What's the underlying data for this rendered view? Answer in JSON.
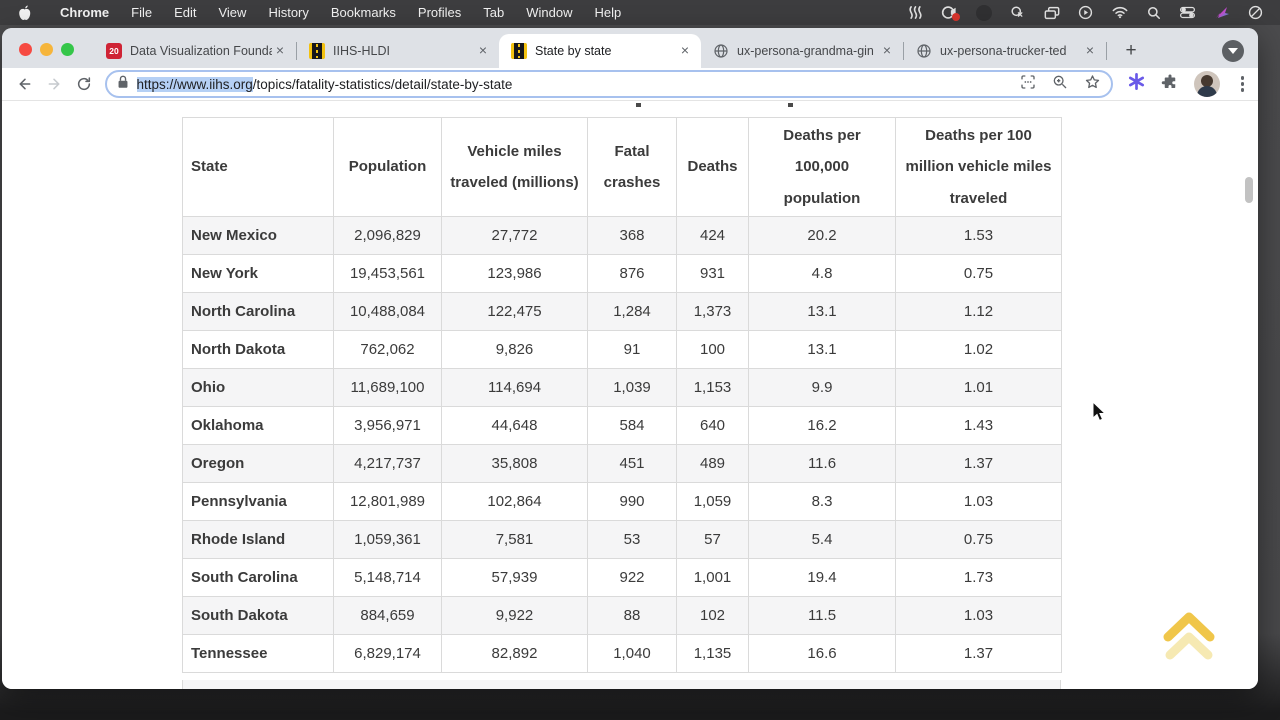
{
  "menu_bar": {
    "items": [
      "Chrome",
      "File",
      "Edit",
      "View",
      "History",
      "Bookmarks",
      "Profiles",
      "Tab",
      "Window",
      "Help"
    ]
  },
  "tab_strip": {
    "close_glyph": "×",
    "new_tab_glyph": "+",
    "tabs": [
      {
        "label": "Data Visualization Founda",
        "favicon": "badge-20",
        "badge": "20"
      },
      {
        "label": "IIHS-HLDI",
        "favicon": "road"
      },
      {
        "label": "State by state",
        "favicon": "road",
        "active": true
      },
      {
        "label": "ux-persona-grandma-gin",
        "favicon": "globe"
      },
      {
        "label": "ux-persona-trucker-ted",
        "favicon": "globe"
      }
    ]
  },
  "toolbar": {
    "url_selected": "https://www.iihs.org",
    "url_rest": "/topics/fatality-statistics/detail/state-by-state"
  },
  "page": {
    "table": {
      "headers": [
        "State",
        "Population",
        "Vehicle miles traveled (millions)",
        "Fatal crashes",
        "Deaths",
        "Deaths per 100,000 population",
        "Deaths per 100 million vehicle miles traveled"
      ],
      "rows": [
        [
          "New Mexico",
          "2,096,829",
          "27,772",
          "368",
          "424",
          "20.2",
          "1.53"
        ],
        [
          "New York",
          "19,453,561",
          "123,986",
          "876",
          "931",
          "4.8",
          "0.75"
        ],
        [
          "North Carolina",
          "10,488,084",
          "122,475",
          "1,284",
          "1,373",
          "13.1",
          "1.12"
        ],
        [
          "North Dakota",
          "762,062",
          "9,826",
          "91",
          "100",
          "13.1",
          "1.02"
        ],
        [
          "Ohio",
          "11,689,100",
          "114,694",
          "1,039",
          "1,153",
          "9.9",
          "1.01"
        ],
        [
          "Oklahoma",
          "3,956,971",
          "44,648",
          "584",
          "640",
          "16.2",
          "1.43"
        ],
        [
          "Oregon",
          "4,217,737",
          "35,808",
          "451",
          "489",
          "11.6",
          "1.37"
        ],
        [
          "Pennsylvania",
          "12,801,989",
          "102,864",
          "990",
          "1,059",
          "8.3",
          "1.03"
        ],
        [
          "Rhode Island",
          "1,059,361",
          "7,581",
          "53",
          "57",
          "5.4",
          "0.75"
        ],
        [
          "South Carolina",
          "5,148,714",
          "57,939",
          "922",
          "1,001",
          "19.4",
          "1.73"
        ],
        [
          "South Dakota",
          "884,659",
          "9,922",
          "88",
          "102",
          "11.5",
          "1.03"
        ],
        [
          "Tennessee",
          "6,829,174",
          "82,892",
          "1,040",
          "1,135",
          "16.6",
          "1.37"
        ]
      ]
    }
  },
  "colors": {
    "selection": "#b5d0f5",
    "tab_bar": "#dee1e6",
    "row_stripe": "#f5f5f6",
    "scrolltop_gold": "#f0c64a",
    "favicon_red": "#cf2335",
    "favicon_yellow": "#f3c211"
  }
}
